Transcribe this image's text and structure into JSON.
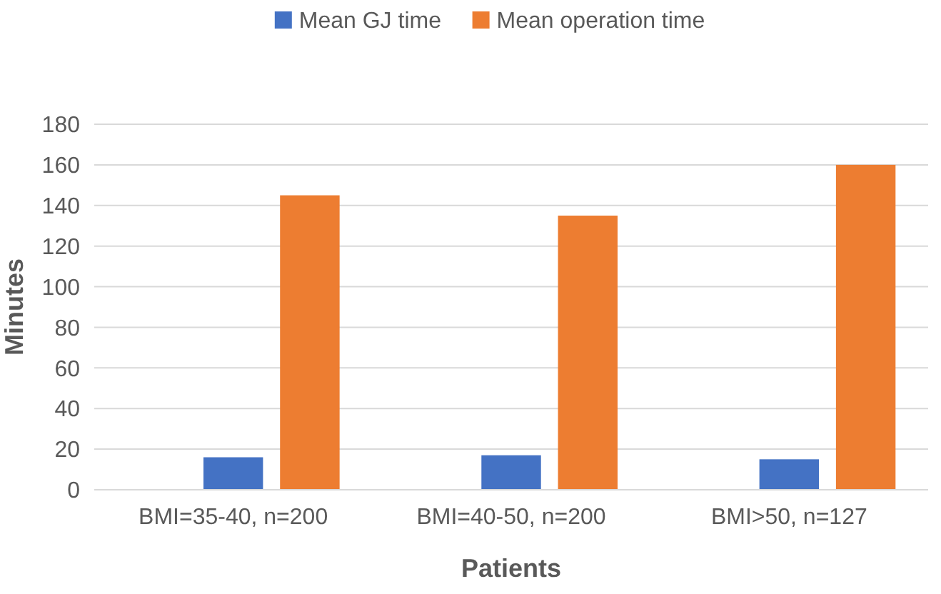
{
  "chart_data": {
    "type": "bar",
    "xlabel": "Patients",
    "ylabel": "Minutes",
    "categories": [
      "BMI=35-40, n=200",
      "BMI=40-50, n=200",
      "BMI>50, n=127"
    ],
    "series": [
      {
        "name": "Mean GJ time",
        "color": "#4472c4",
        "values": [
          16,
          17,
          15
        ]
      },
      {
        "name": "Mean operation time",
        "color": "#ed7d31",
        "values": [
          145,
          135,
          160
        ]
      }
    ],
    "ylim": [
      0,
      180
    ],
    "yticks": [
      0,
      20,
      40,
      60,
      80,
      100,
      120,
      140,
      160,
      180
    ],
    "grid": "y",
    "legend": "top"
  }
}
